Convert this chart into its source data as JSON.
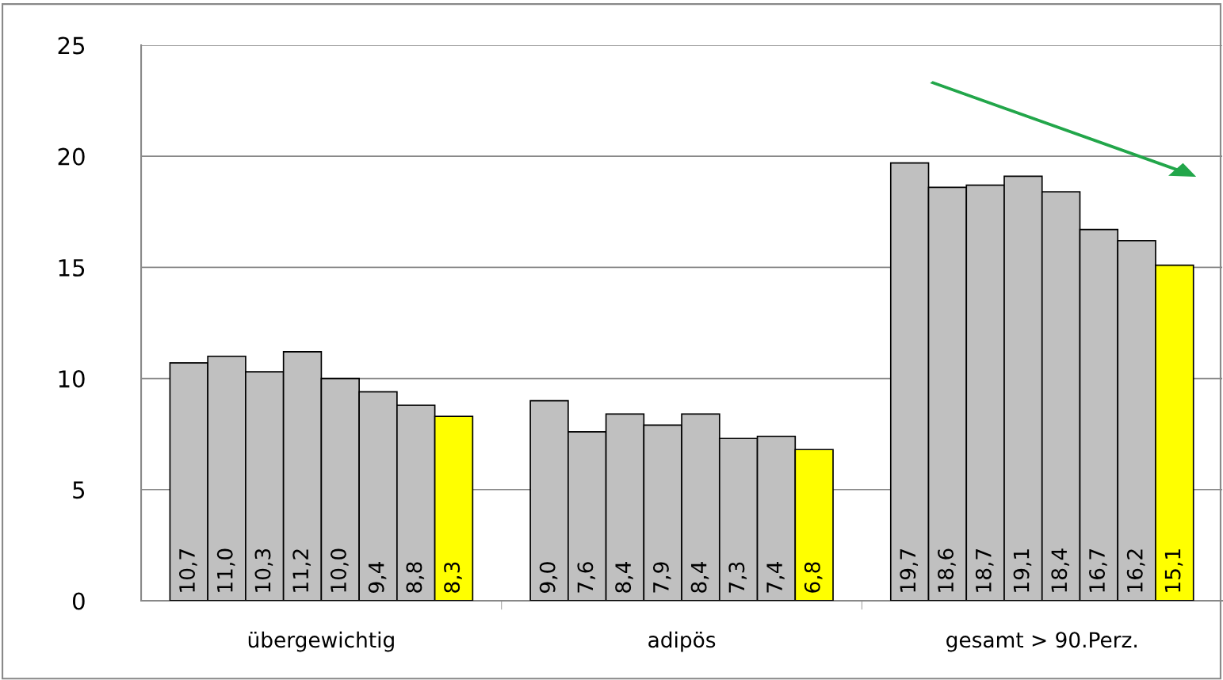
{
  "chart_data": {
    "type": "bar",
    "categories": [
      "übergewichtig",
      "adipös",
      "gesamt > 90.Perz."
    ],
    "series": [
      {
        "color": "#c0c0c0",
        "values": [
          10.7,
          9.0,
          19.7
        ],
        "value_labels": [
          "10,7",
          "9,0",
          "19,7"
        ]
      },
      {
        "color": "#c0c0c0",
        "values": [
          11.0,
          7.6,
          18.6
        ],
        "value_labels": [
          "11,0",
          "7,6",
          "18,6"
        ]
      },
      {
        "color": "#c0c0c0",
        "values": [
          10.3,
          8.4,
          18.7
        ],
        "value_labels": [
          "10,3",
          "8,4",
          "18,7"
        ]
      },
      {
        "color": "#c0c0c0",
        "values": [
          11.2,
          7.9,
          19.1
        ],
        "value_labels": [
          "11,2",
          "7,9",
          "19,1"
        ]
      },
      {
        "color": "#c0c0c0",
        "values": [
          10.0,
          8.4,
          18.4
        ],
        "value_labels": [
          "10,0",
          "8,4",
          "18,4"
        ]
      },
      {
        "color": "#c0c0c0",
        "values": [
          9.4,
          7.3,
          16.7
        ],
        "value_labels": [
          "9,4",
          "7,3",
          "16,7"
        ]
      },
      {
        "color": "#c0c0c0",
        "values": [
          8.8,
          7.4,
          16.2
        ],
        "value_labels": [
          "8,8",
          "7,4",
          "16,2"
        ]
      },
      {
        "color": "#ffff00",
        "values": [
          8.3,
          6.8,
          15.1
        ],
        "value_labels": [
          "8,3",
          "6,8",
          "15,1"
        ]
      }
    ],
    "ylim": [
      0,
      25
    ],
    "yticks": [
      0,
      5,
      10,
      15,
      20,
      25
    ],
    "grid": "y",
    "legend": false
  }
}
